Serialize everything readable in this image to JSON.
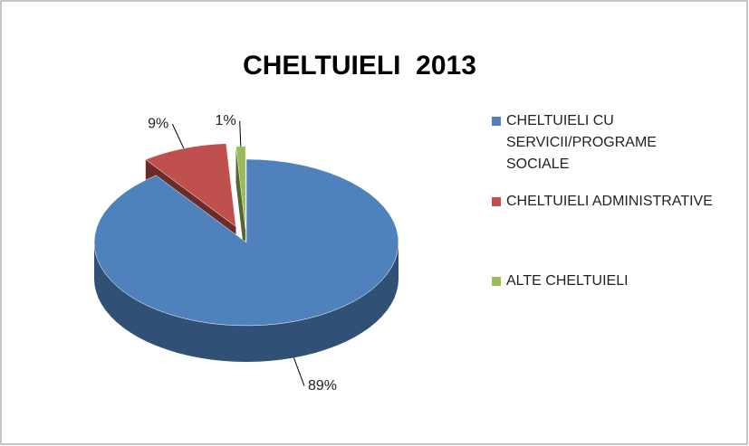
{
  "chart_data": {
    "type": "pie",
    "title": "CHELTUIELI  2013",
    "categories": [
      "CHELTUIELI CU SERVICII/PROGRAME SOCIALE",
      "CHELTUIELI ADMINISTRATIVE",
      "ALTE CHELTUIELI"
    ],
    "values": [
      89,
      9,
      1
    ],
    "value_labels": [
      "89%",
      "9%",
      "1%"
    ],
    "colors": [
      "#4f81bd",
      "#c0504d",
      "#9bbb59"
    ],
    "legend": "right"
  }
}
